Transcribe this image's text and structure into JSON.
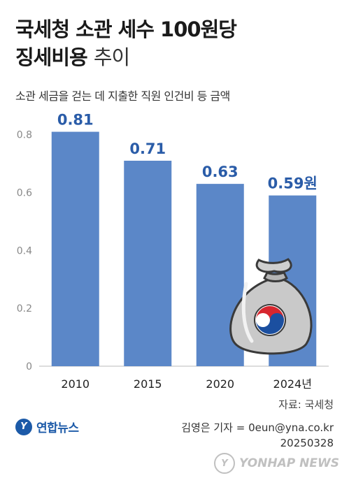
{
  "header": {
    "title_line1": "국세청 소관 세수 100원당",
    "title_line2_bold": "징세비용",
    "title_line2_light": "추이",
    "subtitle": "소관 세금을 걷는 데 지출한 직원 인건비 등 금액"
  },
  "chart_data": {
    "type": "bar",
    "categories": [
      "2010",
      "2015",
      "2020",
      "2024년"
    ],
    "values": [
      0.81,
      0.71,
      0.63,
      0.59
    ],
    "value_labels": [
      "0.81",
      "0.71",
      "0.63",
      "0.59원"
    ],
    "ylim": [
      0,
      0.85
    ],
    "yticks": [
      "0",
      "0.2",
      "0.4",
      "0.6",
      "0.8"
    ],
    "bar_color": "#5b87c8",
    "label_color": "#2a5ca8",
    "grid": false
  },
  "footer": {
    "source": "자료: 국세청",
    "logo_text": "연합뉴스",
    "credit_line1": "김영은 기자 = 0eun@yna.co.kr",
    "credit_line2": "20250328",
    "watermark": "YONHAP NEWS"
  },
  "icons": {
    "money_bag": "money-bag-icon",
    "logo": "yonhap-logo-icon"
  }
}
